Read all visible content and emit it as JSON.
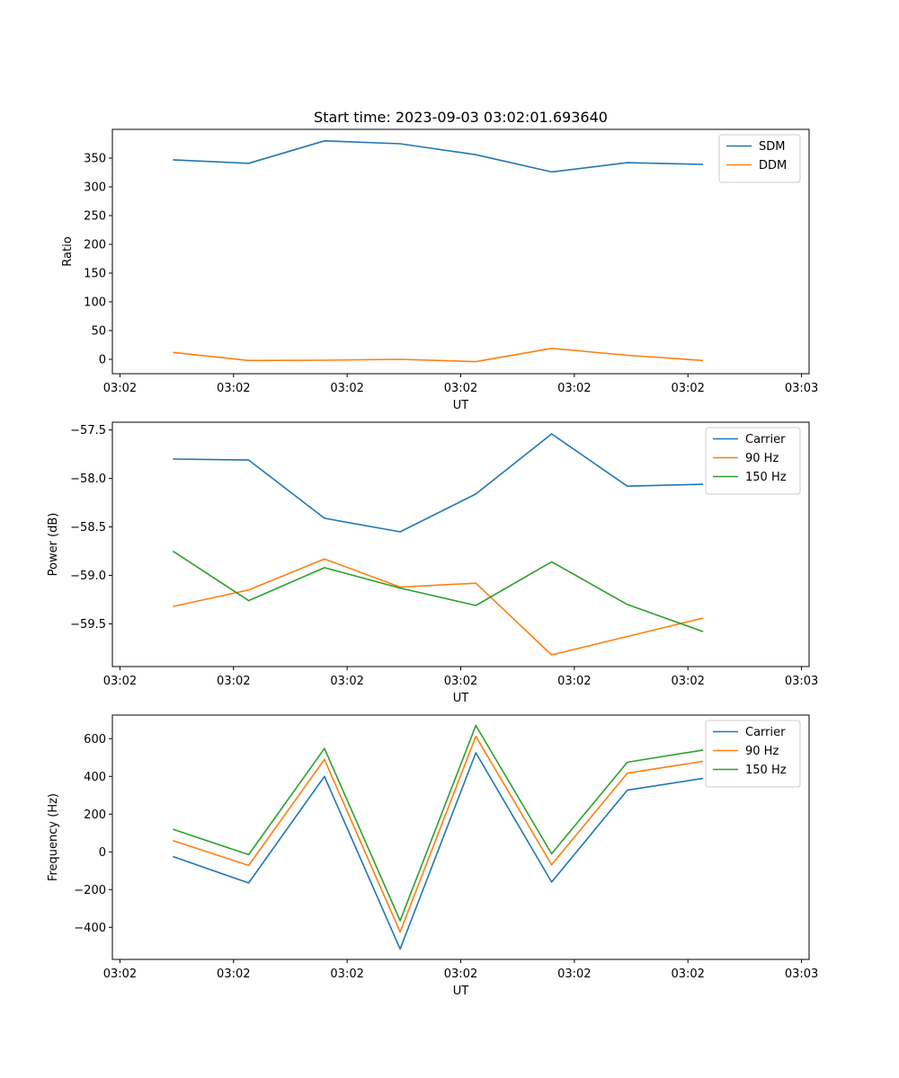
{
  "colors": {
    "blue": "#1f77b4",
    "orange": "#ff7f0e",
    "green": "#2ca02c",
    "axis": "#000000",
    "legend_border": "#cccccc"
  },
  "chart_data": [
    {
      "type": "line",
      "title": "Start time: 2023-09-03 03:02:01.693640",
      "xlabel": "UT",
      "ylabel": "Ratio",
      "x": [
        1,
        2,
        3,
        4,
        5,
        6,
        7,
        8
      ],
      "xlim": [
        0.2,
        9.4
      ],
      "xticks": [
        0.3,
        1.8,
        3.3,
        4.8,
        6.3,
        7.8,
        9.3
      ],
      "xtick_labels": [
        "03:02",
        "03:02",
        "03:02",
        "03:02",
        "03:02",
        "03:02",
        "03:03"
      ],
      "ylim": [
        -25,
        400
      ],
      "yticks": [
        0,
        50,
        100,
        150,
        200,
        250,
        300,
        350
      ],
      "ytick_labels": [
        "0",
        "50",
        "100",
        "150",
        "200",
        "250",
        "300",
        "350"
      ],
      "legend_position": "top-right",
      "series": [
        {
          "name": "SDM",
          "color": "#1f77b4",
          "values": [
            347,
            341,
            380,
            375,
            356,
            326,
            342,
            339
          ]
        },
        {
          "name": "DDM",
          "color": "#ff7f0e",
          "values": [
            12,
            -2,
            -1.5,
            0,
            -4,
            19,
            7,
            -2
          ]
        }
      ]
    },
    {
      "type": "line",
      "title": "",
      "xlabel": "UT",
      "ylabel": "Power (dB)",
      "x": [
        1,
        2,
        3,
        4,
        5,
        6,
        7,
        8
      ],
      "xlim": [
        0.2,
        9.4
      ],
      "xticks": [
        0.3,
        1.8,
        3.3,
        4.8,
        6.3,
        7.8,
        9.3
      ],
      "xtick_labels": [
        "03:02",
        "03:02",
        "03:02",
        "03:02",
        "03:02",
        "03:02",
        "03:03"
      ],
      "ylim": [
        -59.94,
        -57.42
      ],
      "yticks": [
        -59.5,
        -59.0,
        -58.5,
        -58.0,
        -57.5
      ],
      "ytick_labels": [
        "−59.5",
        "−59.0",
        "−58.5",
        "−58.0",
        "−57.5"
      ],
      "legend_position": "top-right",
      "series": [
        {
          "name": "Carrier",
          "color": "#1f77b4",
          "values": [
            -57.8,
            -57.81,
            -58.41,
            -58.55,
            -58.16,
            -57.54,
            -58.08,
            -58.06
          ]
        },
        {
          "name": "90 Hz",
          "color": "#ff7f0e",
          "values": [
            -59.32,
            -59.15,
            -58.83,
            -59.12,
            -59.08,
            -59.82,
            -59.63,
            -59.44
          ]
        },
        {
          "name": "150 Hz",
          "color": "#2ca02c",
          "values": [
            -58.75,
            -59.26,
            -58.92,
            -59.13,
            -59.31,
            -58.86,
            -59.3,
            -59.58
          ]
        }
      ]
    },
    {
      "type": "line",
      "title": "",
      "xlabel": "UT",
      "ylabel": "Frequency (Hz)",
      "x": [
        1,
        2,
        3,
        4,
        5,
        6,
        7,
        8
      ],
      "xlim": [
        0.2,
        9.4
      ],
      "xticks": [
        0.3,
        1.8,
        3.3,
        4.8,
        6.3,
        7.8,
        9.3
      ],
      "xtick_labels": [
        "03:02",
        "03:02",
        "03:02",
        "03:02",
        "03:02",
        "03:02",
        "03:03"
      ],
      "ylim": [
        -570,
        725
      ],
      "yticks": [
        -400,
        -200,
        0,
        200,
        400,
        600
      ],
      "ytick_labels": [
        "−400",
        "−200",
        "0",
        "200",
        "400",
        "600"
      ],
      "legend_position": "top-right",
      "series": [
        {
          "name": "Carrier",
          "color": "#1f77b4",
          "values": [
            -25,
            -165,
            400,
            -515,
            525,
            -160,
            327,
            390
          ]
        },
        {
          "name": "90 Hz",
          "color": "#ff7f0e",
          "values": [
            60,
            -72,
            490,
            -425,
            612,
            -68,
            417,
            480
          ]
        },
        {
          "name": "150 Hz",
          "color": "#2ca02c",
          "values": [
            120,
            -15,
            548,
            -365,
            670,
            -10,
            475,
            540
          ]
        }
      ]
    }
  ]
}
